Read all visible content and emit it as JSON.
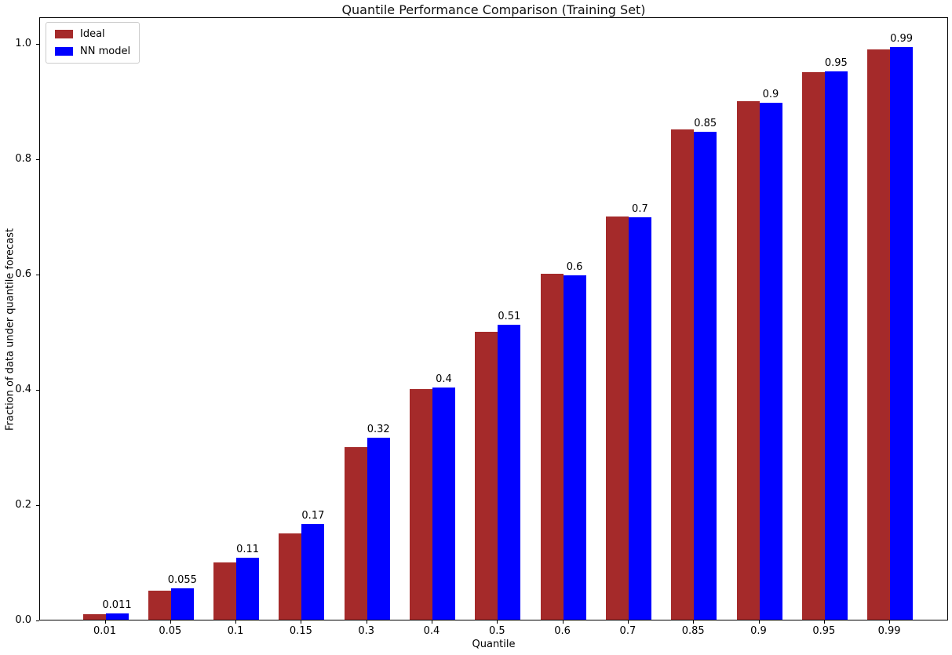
{
  "chart_data": {
    "type": "bar",
    "title": "Quantile Performance Comparison (Training Set)",
    "xlabel": "Quantile",
    "ylabel": "Fraction of data under quantile forecast",
    "categories": [
      "0.01",
      "0.05",
      "0.1",
      "0.15",
      "0.3",
      "0.4",
      "0.5",
      "0.6",
      "0.7",
      "0.85",
      "0.9",
      "0.95",
      "0.99"
    ],
    "series": [
      {
        "name": "Ideal",
        "color": "#a52a2a",
        "values": [
          0.01,
          0.05,
          0.1,
          0.15,
          0.3,
          0.4,
          0.5,
          0.6,
          0.7,
          0.85,
          0.9,
          0.95,
          0.99
        ]
      },
      {
        "name": "NN model",
        "color": "#0000ff",
        "values": [
          0.011,
          0.055,
          0.107,
          0.166,
          0.316,
          0.403,
          0.512,
          0.597,
          0.698,
          0.847,
          0.897,
          0.951,
          0.993
        ],
        "bar_labels": [
          "0.011",
          "0.055",
          "0.11",
          "0.17",
          "0.32",
          "0.4",
          "0.51",
          "0.6",
          "0.7",
          "0.85",
          "0.9",
          "0.95",
          "0.99"
        ]
      }
    ],
    "ylim": [
      0,
      1.0466
    ],
    "yticks": [
      {
        "value": 0.0,
        "label": "0.0"
      },
      {
        "value": 0.2,
        "label": "0.2"
      },
      {
        "value": 0.4,
        "label": "0.4"
      },
      {
        "value": 0.6,
        "label": "0.6"
      },
      {
        "value": 0.8,
        "label": "0.8"
      },
      {
        "value": 1.0,
        "label": "1.0"
      }
    ],
    "legend": {
      "position": "upper left"
    },
    "grid": false
  }
}
